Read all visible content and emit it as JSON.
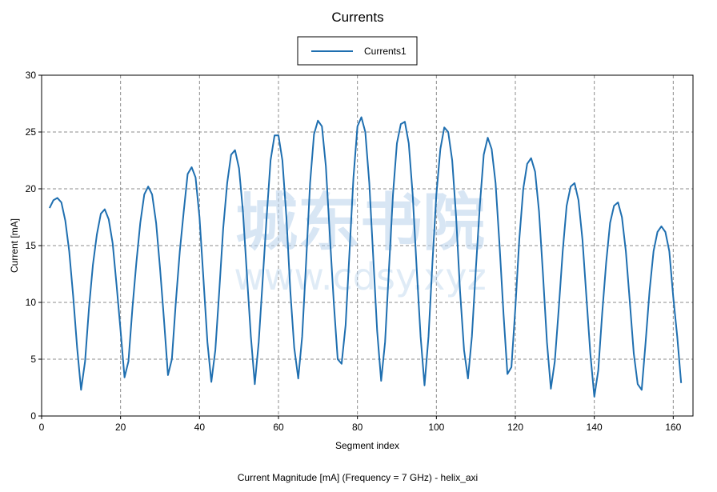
{
  "chart_data": {
    "type": "line",
    "title": "Currents",
    "xlabel": "Segment index",
    "ylabel": "Current [mA]",
    "caption": "Current Magnitude [mA] (Frequency = 7 GHz) - helix_axi",
    "xlim": [
      0,
      165
    ],
    "ylim": [
      0,
      30
    ],
    "xticks": [
      0,
      20,
      40,
      60,
      80,
      100,
      120,
      140,
      160
    ],
    "yticks": [
      0,
      5,
      10,
      15,
      20,
      25,
      30
    ],
    "grid": true,
    "legend_position": "top-center",
    "series": [
      {
        "name": "Currents1",
        "color": "#1f6fb0",
        "x": [
          2,
          3,
          4,
          5,
          6,
          7,
          8,
          9,
          10,
          11,
          12,
          13,
          14,
          15,
          16,
          17,
          18,
          19,
          20,
          21,
          22,
          23,
          24,
          25,
          26,
          27,
          28,
          29,
          30,
          31,
          32,
          33,
          34,
          35,
          36,
          37,
          38,
          39,
          40,
          41,
          42,
          43,
          44,
          45,
          46,
          47,
          48,
          49,
          50,
          51,
          52,
          53,
          54,
          55,
          56,
          57,
          58,
          59,
          60,
          61,
          62,
          63,
          64,
          65,
          66,
          67,
          68,
          69,
          70,
          71,
          72,
          73,
          74,
          75,
          76,
          77,
          78,
          79,
          80,
          81,
          82,
          83,
          84,
          85,
          86,
          87,
          88,
          89,
          90,
          91,
          92,
          93,
          94,
          95,
          96,
          97,
          98,
          99,
          100,
          101,
          102,
          103,
          104,
          105,
          106,
          107,
          108,
          109,
          110,
          111,
          112,
          113,
          114,
          115,
          116,
          117,
          118,
          119,
          120,
          121,
          122,
          123,
          124,
          125,
          126,
          127,
          128,
          129,
          130,
          131,
          132,
          133,
          134,
          135,
          136,
          137,
          138,
          139,
          140,
          141,
          142,
          143,
          144,
          145,
          146,
          147,
          148,
          149,
          150,
          151,
          152,
          153,
          154,
          155,
          156,
          157,
          158,
          159,
          160,
          161,
          162
        ],
        "y": [
          18.3,
          19.0,
          19.2,
          18.8,
          17.2,
          14.5,
          10.5,
          6.0,
          2.3,
          4.8,
          9.5,
          13.3,
          16.0,
          17.8,
          18.2,
          17.3,
          15.2,
          11.5,
          7.5,
          3.4,
          4.8,
          9.5,
          13.5,
          17.0,
          19.5,
          20.2,
          19.5,
          17.0,
          13.0,
          8.5,
          3.6,
          5.0,
          10.0,
          14.5,
          18.0,
          21.3,
          21.9,
          21.0,
          17.5,
          12.0,
          6.5,
          3.0,
          5.8,
          11.0,
          16.5,
          20.5,
          23.0,
          23.4,
          21.8,
          18.0,
          12.5,
          7.0,
          2.8,
          6.5,
          12.0,
          17.5,
          22.5,
          24.7,
          24.7,
          22.5,
          17.5,
          11.0,
          6.0,
          3.3,
          7.0,
          13.5,
          20.5,
          24.8,
          26.0,
          25.5,
          22.0,
          16.0,
          10.0,
          5.0,
          4.6,
          8.0,
          14.5,
          21.0,
          25.5,
          26.3,
          25.0,
          20.5,
          14.0,
          7.5,
          3.1,
          6.5,
          13.0,
          19.5,
          24.0,
          25.7,
          25.9,
          24.0,
          19.5,
          13.0,
          7.0,
          2.7,
          7.0,
          13.5,
          19.5,
          23.5,
          25.4,
          25.0,
          22.5,
          17.5,
          11.0,
          5.8,
          3.3,
          7.0,
          13.0,
          18.5,
          23.0,
          24.5,
          23.5,
          20.5,
          15.0,
          9.0,
          3.7,
          4.3,
          9.5,
          15.5,
          20.0,
          22.2,
          22.7,
          21.5,
          18.0,
          12.5,
          6.5,
          2.4,
          4.8,
          9.5,
          14.5,
          18.5,
          20.2,
          20.5,
          19.0,
          15.5,
          10.5,
          5.5,
          1.7,
          4.0,
          9.0,
          13.5,
          17.0,
          18.5,
          18.8,
          17.5,
          14.5,
          10.0,
          5.5,
          2.8,
          2.3,
          6.5,
          11.0,
          14.5,
          16.2,
          16.7,
          16.2,
          14.5,
          10.5,
          7.0,
          2.9
        ]
      }
    ]
  },
  "watermark": {
    "main": "城东书院",
    "sub": "www.cdsy.xyz"
  }
}
